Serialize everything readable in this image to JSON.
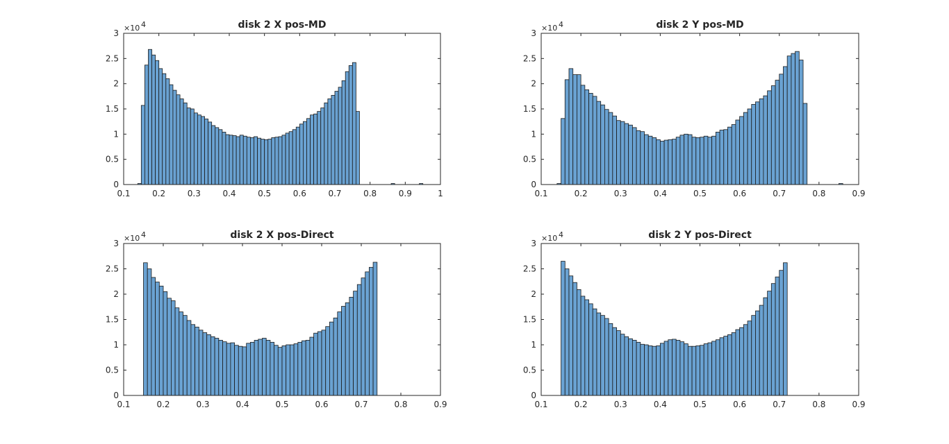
{
  "figure": {
    "background": "#ffffff",
    "bar_color": "#6aa2d2",
    "bar_edge": "#1a1a1a"
  },
  "chart_data": [
    {
      "type": "bar",
      "title": "disk 2 X pos-MD",
      "xlim": [
        0.1,
        1.0
      ],
      "ylim": [
        0,
        30000
      ],
      "xticks": [
        "0.1",
        "0.2",
        "0.3",
        "0.4",
        "0.5",
        "0.6",
        "0.7",
        "0.8",
        "0.9",
        "1"
      ],
      "yticks": [
        "0",
        "0.5",
        "1",
        "1.5",
        "2",
        "2.5",
        "3"
      ],
      "y_exponent_label": "×10",
      "y_exponent_power": "4",
      "bin_width": 0.01,
      "bin_start": 0.15,
      "values": [
        15700,
        23700,
        26800,
        25700,
        24600,
        23000,
        22000,
        21000,
        19800,
        18700,
        17800,
        17000,
        16200,
        15200,
        15000,
        14200,
        13800,
        13500,
        13000,
        12400,
        11700,
        11300,
        10900,
        10400,
        9900,
        9800,
        9700,
        9500,
        9800,
        9600,
        9400,
        9300,
        9500,
        9200,
        9000,
        8900,
        9000,
        9300,
        9400,
        9500,
        9800,
        10200,
        10500,
        10900,
        11400,
        12000,
        12500,
        13100,
        13800,
        14000,
        14500,
        15200,
        16200,
        17000,
        17700,
        18500,
        19300,
        20600,
        22400,
        23600,
        24200,
        14500
      ],
      "outliers": [
        {
          "x": 0.145,
          "y": 200
        },
        {
          "x": 0.865,
          "y": 150
        },
        {
          "x": 0.945,
          "y": 250
        }
      ]
    },
    {
      "type": "bar",
      "title": "disk 2 Y pos-MD",
      "xlim": [
        0.1,
        0.9
      ],
      "ylim": [
        0,
        30000
      ],
      "xticks": [
        "0.1",
        "0.2",
        "0.3",
        "0.4",
        "0.5",
        "0.6",
        "0.7",
        "0.8",
        "0.9"
      ],
      "yticks": [
        "0",
        "0.5",
        "1",
        "1.5",
        "2",
        "2.5",
        "3"
      ],
      "y_exponent_label": "×10",
      "y_exponent_power": "4",
      "bin_width": 0.01,
      "bin_start": 0.15,
      "values": [
        13100,
        20800,
        23000,
        21800,
        21800,
        19700,
        18800,
        18100,
        17500,
        16500,
        15800,
        14900,
        14300,
        13600,
        12700,
        12500,
        12100,
        11800,
        11300,
        10700,
        10500,
        9900,
        9600,
        9300,
        8900,
        8600,
        8800,
        8900,
        9000,
        9400,
        9800,
        10000,
        9900,
        9400,
        9300,
        9400,
        9600,
        9400,
        9600,
        10400,
        10800,
        10900,
        11400,
        11900,
        12800,
        13500,
        14300,
        15000,
        15900,
        16400,
        17000,
        17600,
        18600,
        19600,
        20700,
        21900,
        23400,
        25500,
        26000,
        26400,
        24700,
        16100
      ],
      "outliers": [
        {
          "x": 0.145,
          "y": 200
        },
        {
          "x": 0.855,
          "y": 200
        }
      ]
    },
    {
      "type": "bar",
      "title": "disk 2 X pos-Direct",
      "xlim": [
        0.1,
        0.9
      ],
      "ylim": [
        0,
        30000
      ],
      "xticks": [
        "0.1",
        "0.2",
        "0.3",
        "0.4",
        "0.5",
        "0.6",
        "0.7",
        "0.8",
        "0.9"
      ],
      "yticks": [
        "0",
        "0.5",
        "1",
        "1.5",
        "2",
        "2.5",
        "3"
      ],
      "y_exponent_label": "×10",
      "y_exponent_power": "4",
      "bin_width": 0.01,
      "bin_start": 0.15,
      "values": [
        26200,
        25000,
        23300,
        22400,
        21600,
        20500,
        19200,
        18700,
        17300,
        16500,
        15800,
        14800,
        14000,
        13500,
        12900,
        12400,
        12000,
        11600,
        11300,
        10900,
        10600,
        10300,
        10400,
        9900,
        9700,
        9600,
        10300,
        10500,
        10900,
        11100,
        11300,
        10900,
        10500,
        9900,
        9500,
        9800,
        10000,
        10000,
        10200,
        10500,
        10800,
        10900,
        11500,
        12300,
        12600,
        12900,
        13600,
        14500,
        15300,
        16500,
        17600,
        18300,
        19400,
        20600,
        21900,
        23200,
        24400,
        25300,
        26300
      ],
      "outliers": []
    },
    {
      "type": "bar",
      "title": "disk 2 Y pos-Direct",
      "xlim": [
        0.1,
        0.9
      ],
      "ylim": [
        0,
        30000
      ],
      "xticks": [
        "0.1",
        "0.2",
        "0.3",
        "0.4",
        "0.5",
        "0.6",
        "0.7",
        "0.8",
        "0.9"
      ],
      "yticks": [
        "0",
        "0.5",
        "1",
        "1.5",
        "2",
        "2.5",
        "3"
      ],
      "y_exponent_label": "×10",
      "y_exponent_power": "4",
      "bin_width": 0.01,
      "bin_start": 0.15,
      "values": [
        26500,
        25000,
        23600,
        22300,
        20900,
        19600,
        18900,
        18100,
        17100,
        16300,
        15800,
        15200,
        14200,
        13400,
        12800,
        12100,
        11600,
        11200,
        10900,
        10500,
        10100,
        10000,
        9800,
        9700,
        9800,
        10300,
        10700,
        11000,
        11100,
        10900,
        10600,
        10200,
        9700,
        9700,
        9800,
        9900,
        10200,
        10400,
        10700,
        11000,
        11400,
        11700,
        12000,
        12400,
        13000,
        13400,
        14000,
        14700,
        15800,
        16700,
        17800,
        19300,
        20600,
        22100,
        23400,
        24700,
        26200
      ],
      "outliers": []
    }
  ]
}
